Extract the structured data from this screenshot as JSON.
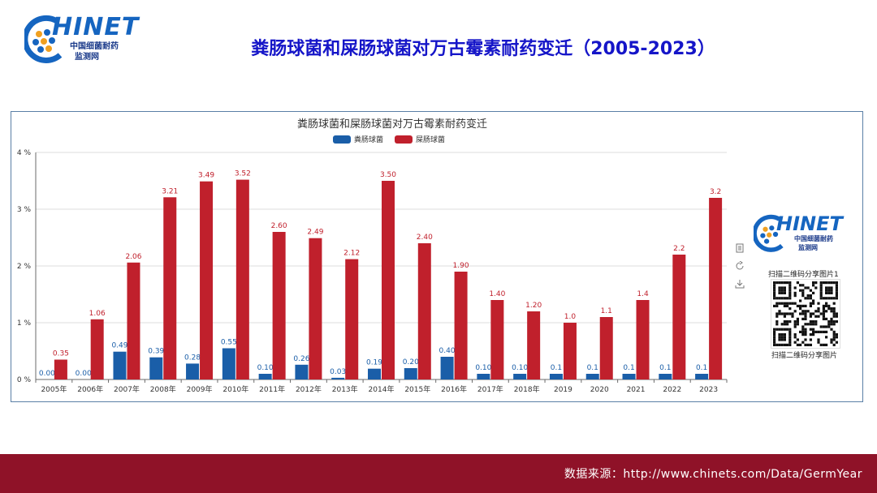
{
  "header": {
    "logo_word": "HINET",
    "logo_cn_line1": "中国细菌耐药",
    "logo_cn_line2": "监测网",
    "slide_title": "粪肠球菌和屎肠球菌对万古霉素耐药变迁（2005-2023）"
  },
  "sidebar": {
    "logo_word": "HINET",
    "logo_cn_line1": "中国细菌耐药",
    "logo_cn_line2": "监测网",
    "qr_caption_top": "扫描二维码分享图片1",
    "qr_caption_bottom": "扫描二维码分享图片",
    "tool_icons": [
      "document-icon",
      "refresh-icon",
      "download-icon"
    ]
  },
  "footer": {
    "source": "数据来源：http://www.chinets.com/Data/GermYear"
  },
  "chart_data": {
    "type": "bar",
    "title": "粪肠球菌和屎肠球菌对万古霉素耐药变迁",
    "legend_position": "top-center",
    "grid": true,
    "xlabel": "",
    "ylabel": "",
    "ylim": [
      0,
      4
    ],
    "yticks": [
      "0 %",
      "1 %",
      "2 %",
      "3 %",
      "4 %"
    ],
    "categories": [
      "2005年",
      "2006年",
      "2007年",
      "2008年",
      "2009年",
      "2010年",
      "2011年",
      "2012年",
      "2013年",
      "2014年",
      "2015年",
      "2016年",
      "2017年",
      "2018年",
      "2019",
      "2020",
      "2021",
      "2022",
      "2023"
    ],
    "series": [
      {
        "name": "粪肠球菌",
        "color": "#1a5ea8",
        "values": [
          0.0,
          0.0,
          0.49,
          0.39,
          0.28,
          0.55,
          0.1,
          0.26,
          0.03,
          0.19,
          0.2,
          0.4,
          0.1,
          0.1,
          0.1,
          0.1,
          0.1,
          0.1,
          0.1
        ],
        "labels": [
          "0.00",
          "0.00",
          "0.49",
          "0.39",
          "0.28",
          "0.55",
          "0.10",
          "0.26",
          "0.03",
          "0.19",
          "0.20",
          "0.40",
          "0.10",
          "0.10",
          "0.1",
          "0.1",
          "0.1",
          "0.1",
          "0.1"
        ]
      },
      {
        "name": "屎肠球菌",
        "color": "#c0202c",
        "values": [
          0.35,
          1.06,
          2.06,
          3.21,
          3.49,
          3.52,
          2.6,
          2.49,
          2.12,
          3.5,
          2.4,
          1.9,
          1.4,
          1.2,
          1.0,
          1.1,
          1.4,
          2.2,
          3.2
        ],
        "labels": [
          "0.35",
          "1.06",
          "2.06",
          "3.21",
          "3.49",
          "3.52",
          "2.60",
          "2.49",
          "2.12",
          "3.50",
          "2.40",
          "1.90",
          "1.40",
          "1.20",
          "1.0",
          "1.1",
          "1.4",
          "2.2",
          "3.2"
        ]
      }
    ]
  }
}
